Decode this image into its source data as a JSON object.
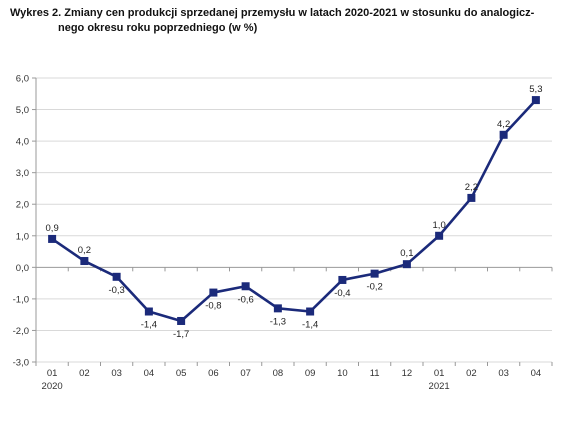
{
  "title_line1": "Wykres 2. Zmiany cen produkcji sprzedanej przemysłu w latach 2020-2021 w stosunku do analogicz-",
  "title_line2": "nego  okresu roku poprzedniego (w %)",
  "chart_data": {
    "type": "line",
    "title": "Wykres 2. Zmiany cen produkcji sprzedanej przemysłu w latach 2020-2021 w stosunku do analogicznego  okresu roku poprzedniego (w %)",
    "categories": [
      "01",
      "02",
      "03",
      "04",
      "05",
      "06",
      "07",
      "08",
      "09",
      "10",
      "11",
      "12",
      "01",
      "02",
      "03",
      "04"
    ],
    "year_labels": [
      {
        "index": 0,
        "label": "2020"
      },
      {
        "index": 12,
        "label": "2021"
      }
    ],
    "series": [
      {
        "values": [
          0.9,
          0.2,
          -0.3,
          -1.4,
          -1.7,
          -0.8,
          -0.6,
          -1.3,
          -1.4,
          -0.4,
          -0.2,
          0.1,
          1.0,
          2.2,
          4.2,
          5.3
        ],
        "value_labels": [
          "0,9",
          "0,2",
          "-0,3",
          "-1,4",
          "-1,7",
          "-0,8",
          "-0,6",
          "-1,3",
          "-1,4",
          "-0,4",
          "-0,2",
          "0,1",
          "1,0",
          "2,2",
          "4,2",
          "5,3"
        ],
        "label_positions": [
          "above",
          "above",
          "below",
          "below",
          "below",
          "below",
          "below",
          "below",
          "below",
          "below",
          "below",
          "above",
          "above",
          "above",
          "above",
          "above"
        ],
        "color": "#1b2a7a",
        "marker": "square"
      }
    ],
    "ylim": [
      -3.0,
      6.0
    ],
    "yticks": [
      -3.0,
      -2.0,
      -1.0,
      0.0,
      1.0,
      2.0,
      3.0,
      4.0,
      5.0,
      6.0
    ],
    "ytick_labels": [
      "-3,0",
      "-2,0",
      "-1,0",
      "0,0",
      "1,0",
      "2,0",
      "3,0",
      "4,0",
      "5,0",
      "6,0"
    ],
    "grid": true,
    "grid_color": "#d9d9d9",
    "axis_color": "#999999",
    "legend": "none"
  }
}
